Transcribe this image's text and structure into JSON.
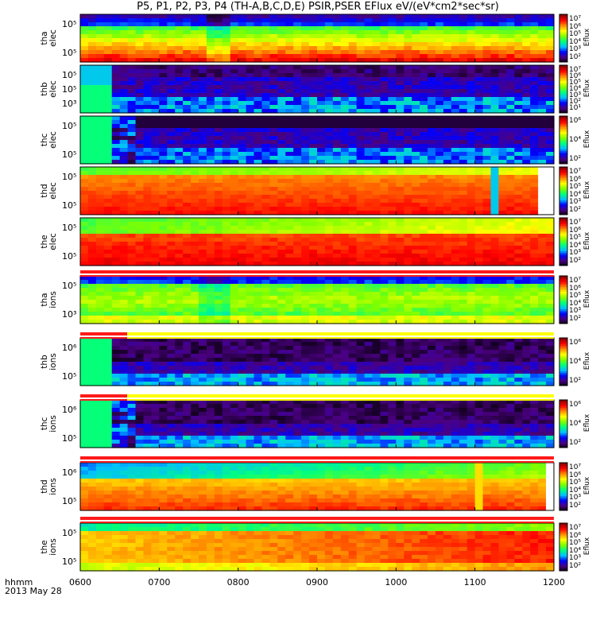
{
  "title": "P5, P1, P2, P3, P4 (TH-A,B,C,D,E) PSIR,PSER EFlux eV/(eV*cm2*sec*sr)",
  "footer": {
    "line1": "hhmm",
    "line2": "2013 May 28"
  },
  "colors": {
    "state_red": "#ff1a1a",
    "state_yellow": "#ffff00",
    "colormap": [
      "#000000",
      "#4b0082",
      "#0000ff",
      "#00bfff",
      "#00ff7f",
      "#7fff00",
      "#ffff00",
      "#ff8c00",
      "#ff0000",
      "#8b0000"
    ]
  },
  "chart_data": {
    "type": "heatmap",
    "x_axis": {
      "ticks": [
        "0600",
        "0700",
        "0800",
        "0900",
        "1000",
        "1100",
        "1200"
      ],
      "range": [
        "0600",
        "1200"
      ]
    },
    "colorbar_title": "Eflux",
    "panels": [
      {
        "probe": "tha",
        "species": "elec",
        "y_ticks": [
          "10⁵",
          "10⁵"
        ],
        "colorbar_ticks": [
          "10⁷",
          "10⁶",
          "10⁵",
          "10⁴",
          "10³",
          "10²"
        ],
        "profile": "tha_elec"
      },
      {
        "probe": "thb",
        "species": "elec",
        "y_ticks": [
          "10⁵",
          "10⁵",
          "10³"
        ],
        "colorbar_ticks": [
          "10⁷",
          "10⁶",
          "10⁵",
          "10⁴",
          "10³",
          "10²",
          "10¹"
        ],
        "profile": "sparse_b"
      },
      {
        "probe": "thc",
        "species": "elec",
        "y_ticks": [
          "10⁵",
          "10⁵"
        ],
        "colorbar_ticks": [
          "10⁶",
          "10⁴",
          "10²"
        ],
        "profile": "sparse_c"
      },
      {
        "probe": "thd",
        "species": "elec",
        "y_ticks": [
          "10⁵",
          "10⁵"
        ],
        "colorbar_ticks": [
          "10⁷",
          "10⁶",
          "10⁵",
          "10⁴",
          "10³",
          "10²"
        ],
        "profile": "hot_d"
      },
      {
        "probe": "the",
        "species": "elec",
        "y_ticks": [
          "10⁵",
          "10⁵"
        ],
        "colorbar_ticks": [
          "10⁷",
          "10⁶",
          "10⁵",
          "10⁴",
          "10³",
          "10²"
        ],
        "profile": "hot_e"
      },
      {
        "probe": "tha",
        "species": "ions",
        "y_ticks": [
          "10⁵",
          "10³"
        ],
        "colorbar_ticks": [
          "10⁷",
          "10⁶",
          "10⁵",
          "10⁴",
          "10³",
          "10²"
        ],
        "profile": "tha_ions"
      },
      {
        "probe": "thb",
        "species": "ions",
        "y_ticks": [
          "10⁶",
          "10⁵"
        ],
        "colorbar_ticks": [
          "10⁶",
          "10⁴",
          "10²"
        ],
        "profile": "sparse_bi"
      },
      {
        "probe": "thc",
        "species": "ions",
        "y_ticks": [
          "10⁶",
          "10⁵"
        ],
        "colorbar_ticks": [
          "10⁶",
          "10⁴",
          "10²"
        ],
        "profile": "sparse_ci"
      },
      {
        "probe": "thd",
        "species": "ions",
        "y_ticks": [
          "10⁶",
          "10⁵"
        ],
        "colorbar_ticks": [
          "10⁷",
          "10⁶",
          "10⁵",
          "10⁴",
          "10³",
          "10²"
        ],
        "profile": "hot_di"
      },
      {
        "probe": "the",
        "species": "ions",
        "y_ticks": [
          "10⁵",
          "10⁵"
        ],
        "colorbar_ticks": [
          "10⁷",
          "10⁶",
          "10⁵",
          "10⁴",
          "10³",
          "10²"
        ],
        "profile": "the_ions"
      }
    ]
  }
}
